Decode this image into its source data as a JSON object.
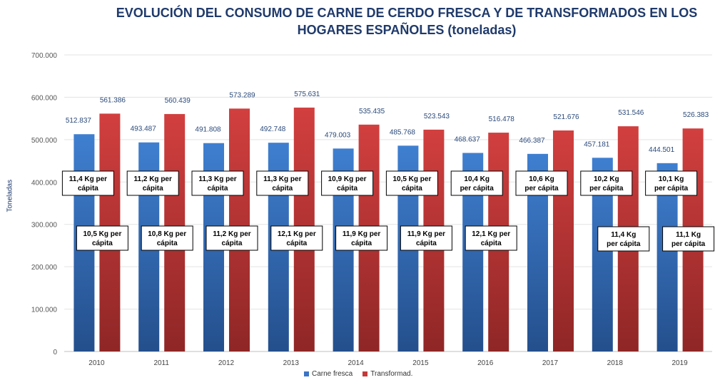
{
  "chart_data": {
    "type": "bar",
    "title": [
      "EVOLUCIÓN DEL CONSUMO DE CARNE DE CERDO FRESCA Y DE TRANSFORMADOS EN LOS",
      "HOGARES ESPAÑOLES (toneladas)"
    ],
    "ylabel": "Toneladas",
    "xlabel": "",
    "ylim": [
      0,
      700000
    ],
    "yticks": [
      "0",
      "100.000",
      "200.000",
      "300.000",
      "400.000",
      "500.000",
      "600.000",
      "700.000"
    ],
    "categories": [
      "2010",
      "2011",
      "2012",
      "2013",
      "2014",
      "2015",
      "2016",
      "2017",
      "2018",
      "2019"
    ],
    "series": [
      {
        "name": "Carne fresca",
        "color": "#3b74c4",
        "values": [
          512837,
          493487,
          491808,
          492748,
          479003,
          485768,
          468637,
          466387,
          457181,
          444501
        ],
        "labels": [
          "512.837",
          "493.487",
          "491.808",
          "492.748",
          "479.003",
          "485.768",
          "468.637",
          "466.387",
          "457.181",
          "444.501"
        ],
        "per_capita": [
          [
            "11,4 Kg per",
            "cápita"
          ],
          [
            "11,2 Kg per",
            "cápita"
          ],
          [
            "11,3 Kg per",
            "cápita"
          ],
          [
            "11,3 Kg per",
            "cápita"
          ],
          [
            "10,9 Kg per",
            "cápita"
          ],
          [
            "10,5 Kg per",
            "cápita"
          ],
          [
            "10,4 Kg",
            "per cápita"
          ],
          [
            "10,6 Kg",
            "per cápita"
          ],
          [
            "10,2 Kg",
            "per cápita"
          ],
          [
            "10,1 Kg",
            "per cápita"
          ]
        ]
      },
      {
        "name": "Transformad.",
        "color": "#c33a3a",
        "values": [
          561386,
          560439,
          573289,
          575631,
          535435,
          523543,
          516478,
          521676,
          531546,
          526383
        ],
        "labels": [
          "561.386",
          "560.439",
          "573.289",
          "575.631",
          "535.435",
          "523.543",
          "516.478",
          "521.676",
          "531.546",
          "526.383"
        ],
        "per_capita": [
          [
            "10,5 Kg per",
            "cápita"
          ],
          [
            "10,8 Kg per",
            "cápita"
          ],
          [
            "11,2 Kg per",
            "cápita"
          ],
          [
            "12,1 Kg per",
            "cápita"
          ],
          [
            "11,9 Kg per",
            "cápita"
          ],
          [
            "11,9 Kg per",
            "cápita"
          ],
          [
            "12,1 Kg per",
            "cápita"
          ],
          [
            "",
            ""
          ],
          [
            "11,4 Kg",
            "per cápita"
          ],
          [
            "11,1 Kg",
            "per cápita"
          ]
        ]
      }
    ],
    "grid": true,
    "legend": "bottom"
  }
}
